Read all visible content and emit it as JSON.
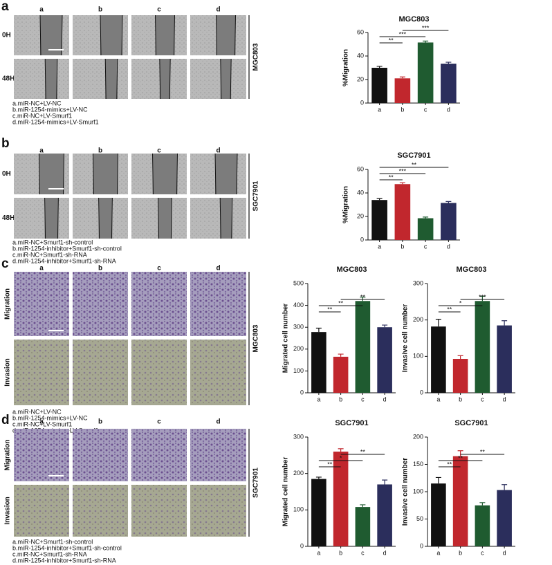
{
  "panels": [
    {
      "letter": "a",
      "columns": [
        "a",
        "b",
        "c",
        "d"
      ],
      "rows": [
        "0H",
        "48H"
      ],
      "cell_line": "MGC803",
      "legend": [
        "a.miR-NC+LV-NC",
        "b.miR-1254-mimics+LV-NC",
        "c.miR-NC+LV-Smurf1",
        "d.miR-1254-mimics+LV-Smurf1"
      ]
    },
    {
      "letter": "b",
      "columns": [
        "a",
        "b",
        "c",
        "d"
      ],
      "rows": [
        "0H",
        "48H"
      ],
      "cell_line": "SGC7901",
      "legend": [
        "a.miR-NC+Smurf1-sh-control",
        "b.miR-1254-inhibitor+Smurf1-sh-control",
        "c.miR-NC+Smurf1-sh-RNA",
        "d.miR-1254-inhibitor+Smurf1-sh-RNA"
      ]
    },
    {
      "letter": "c",
      "columns": [
        "a",
        "b",
        "c",
        "d"
      ],
      "rows": [
        "Migration",
        "Invasion"
      ],
      "cell_line": "MGC803",
      "legend": [
        "a.miR-NC+LV-NC",
        "b.miR-1254-mimics+LV-NC",
        "c.miR-NC+LV-Smurf1",
        "d.miR-1254-mimics+LV-Smurf1"
      ]
    },
    {
      "letter": "d",
      "columns": [
        "a",
        "b",
        "c",
        "d"
      ],
      "rows": [
        "Migration",
        "Invasion"
      ],
      "cell_line": "SGC7901",
      "legend": [
        "a.miR-NC+Smurf1-sh-control",
        "b.miR-1254-inhibitor+Smurf1-sh-control",
        "c.miR-NC+Smurf1-sh-RNA",
        "d.miR-1254-inhibitor+Smurf1-sh-RNA"
      ]
    }
  ],
  "chart_data": [
    {
      "type": "bar",
      "title": "MGC803",
      "ylabel": "%Migration",
      "categories": [
        "a",
        "b",
        "c",
        "d"
      ],
      "values": [
        30,
        21,
        51.5,
        33.5
      ],
      "errors": [
        1.2,
        1.2,
        1.2,
        1.2
      ],
      "colors": [
        "#111111",
        "#c1272d",
        "#1f5b30",
        "#2b2e5c"
      ],
      "ylim": [
        0,
        60
      ],
      "yticks": [
        0,
        20,
        40,
        60
      ],
      "annotations": [
        {
          "from": 0,
          "to": 1,
          "label": "**"
        },
        {
          "from": 0,
          "to": 2,
          "label": "***"
        },
        {
          "from": 1,
          "to": 3,
          "label": "***"
        }
      ]
    },
    {
      "type": "bar",
      "title": "SGC7901",
      "ylabel": "%Migration",
      "categories": [
        "a",
        "b",
        "c",
        "d"
      ],
      "values": [
        34,
        47.5,
        18.5,
        31.5
      ],
      "errors": [
        1.2,
        1.2,
        1.0,
        1.2
      ],
      "colors": [
        "#111111",
        "#c1272d",
        "#1f5b30",
        "#2b2e5c"
      ],
      "ylim": [
        0,
        60
      ],
      "yticks": [
        0,
        20,
        40,
        60
      ],
      "annotations": [
        {
          "from": 0,
          "to": 1,
          "label": "**"
        },
        {
          "from": 0,
          "to": 2,
          "label": "***"
        },
        {
          "from": 0,
          "to": 3,
          "label": "**"
        }
      ]
    },
    {
      "type": "bar",
      "title": "MGC803",
      "ylabel": "Migrated cell number",
      "categories": [
        "a",
        "b",
        "c",
        "d"
      ],
      "values": [
        278,
        165,
        420,
        300
      ],
      "errors": [
        18,
        12,
        18,
        10
      ],
      "colors": [
        "#111111",
        "#c1272d",
        "#1f5b30",
        "#2b2e5c"
      ],
      "ylim": [
        0,
        500
      ],
      "yticks": [
        0,
        100,
        200,
        300,
        400,
        500
      ],
      "annotations": [
        {
          "from": 0,
          "to": 1,
          "label": "**"
        },
        {
          "from": 0,
          "to": 2,
          "label": "**"
        },
        {
          "from": 1,
          "to": 3,
          "label": "**"
        }
      ]
    },
    {
      "type": "bar",
      "title": "MGC803",
      "ylabel": "Invasive cell number",
      "categories": [
        "a",
        "b",
        "c",
        "d"
      ],
      "values": [
        182,
        93,
        252,
        185
      ],
      "errors": [
        20,
        9,
        13,
        13
      ],
      "colors": [
        "#111111",
        "#c1272d",
        "#1f5b30",
        "#2b2e5c"
      ],
      "ylim": [
        0,
        300
      ],
      "yticks": [
        0,
        100,
        200,
        300
      ],
      "annotations": [
        {
          "from": 0,
          "to": 1,
          "label": "**"
        },
        {
          "from": 0,
          "to": 2,
          "label": "*"
        },
        {
          "from": 1,
          "to": 3,
          "label": "***"
        }
      ]
    },
    {
      "type": "bar",
      "title": "SGC7901",
      "ylabel": "Migrated cell number",
      "categories": [
        "a",
        "b",
        "c",
        "d"
      ],
      "values": [
        185,
        260,
        108,
        170
      ],
      "errors": [
        5,
        8,
        6,
        12
      ],
      "colors": [
        "#111111",
        "#c1272d",
        "#1f5b30",
        "#2b2e5c"
      ],
      "ylim": [
        0,
        300
      ],
      "yticks": [
        0,
        100,
        200,
        300
      ],
      "annotations": [
        {
          "from": 0,
          "to": 1,
          "label": "**"
        },
        {
          "from": 0,
          "to": 2,
          "label": "*"
        },
        {
          "from": 1,
          "to": 3,
          "label": "**"
        }
      ]
    },
    {
      "type": "bar",
      "title": "SGC7901",
      "ylabel": "Invasive cell number",
      "categories": [
        "a",
        "b",
        "c",
        "d"
      ],
      "values": [
        115,
        165,
        75,
        103
      ],
      "errors": [
        11,
        10,
        5,
        10
      ],
      "colors": [
        "#111111",
        "#c1272d",
        "#1f5b30",
        "#2b2e5c"
      ],
      "ylim": [
        0,
        200
      ],
      "yticks": [
        0,
        50,
        100,
        150,
        200
      ],
      "annotations": [
        {
          "from": 0,
          "to": 1,
          "label": "**"
        },
        {
          "from": 0,
          "to": 2,
          "label": "**"
        },
        {
          "from": 1,
          "to": 3,
          "label": "**"
        }
      ]
    }
  ]
}
